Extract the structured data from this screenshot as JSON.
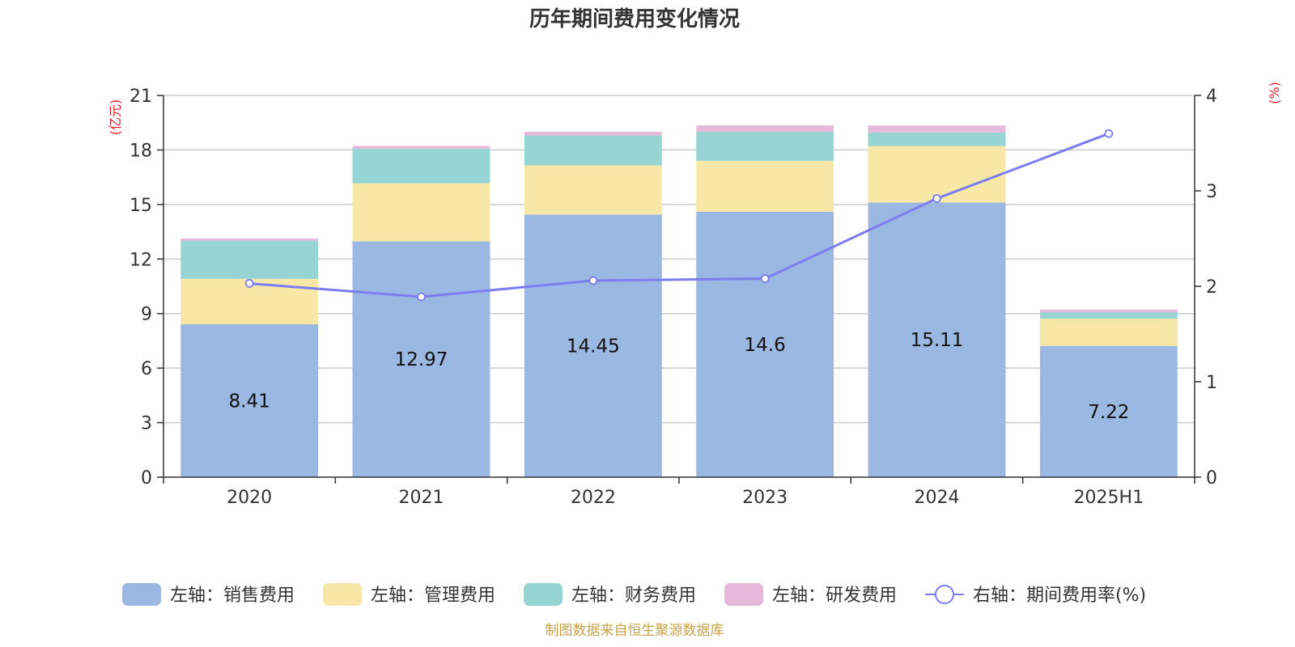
{
  "chart_data": {
    "type": "bar",
    "title": "历年期间费用变化情况",
    "categories": [
      "2020",
      "2021",
      "2022",
      "2023",
      "2024",
      "2025H1"
    ],
    "series": [
      {
        "name": "左轴：销售费用",
        "kind": "bar",
        "axis": "left",
        "color": "#9bb8e2",
        "values": [
          8.41,
          12.97,
          14.45,
          14.6,
          15.11,
          7.22
        ],
        "labels": [
          "8.41",
          "12.97",
          "14.45",
          "14.6",
          "15.11",
          "7.22"
        ]
      },
      {
        "name": "左轴：管理费用",
        "kind": "bar",
        "axis": "left",
        "color": "#f7e8a8",
        "values": [
          2.5,
          3.2,
          2.7,
          2.8,
          3.1,
          1.5
        ]
      },
      {
        "name": "左轴：财务费用",
        "kind": "bar",
        "axis": "left",
        "color": "#97d4d4",
        "values": [
          2.1,
          1.9,
          1.65,
          1.6,
          0.75,
          0.35
        ]
      },
      {
        "name": "左轴：研发费用",
        "kind": "bar",
        "axis": "left",
        "color": "#e6b8d9",
        "values": [
          0.12,
          0.15,
          0.2,
          0.35,
          0.38,
          0.15
        ]
      },
      {
        "name": "右轴：期间费用率(%)",
        "kind": "line",
        "axis": "right",
        "color": "#7b7cf0",
        "values": [
          2.03,
          1.89,
          2.06,
          2.08,
          2.92,
          3.6
        ]
      }
    ],
    "y_left": {
      "label": "(亿元)",
      "min": 0,
      "max": 21,
      "ticks": [
        "0",
        "3",
        "6",
        "9",
        "12",
        "15",
        "18",
        "21"
      ]
    },
    "y_right": {
      "label": "(%)",
      "min": 0,
      "max": 4,
      "ticks": [
        "0",
        "1",
        "2",
        "3",
        "4"
      ]
    },
    "grid": true,
    "legend_position": "bottom",
    "source": "制图数据来自恒生聚源数据库"
  }
}
